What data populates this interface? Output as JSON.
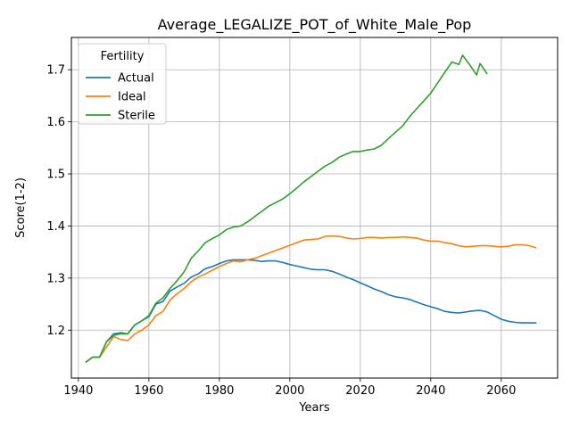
{
  "chart_data": {
    "type": "line",
    "title": "Average_LEGALIZE_POT_of_White_Male_Pop",
    "xlabel": "Years",
    "ylabel": "Score(1-2)",
    "xlim": [
      1938,
      2076
    ],
    "ylim": [
      1.108,
      1.762
    ],
    "xticks": [
      1940,
      1960,
      1980,
      2000,
      2020,
      2040,
      2060
    ],
    "yticks": [
      1.2,
      1.3,
      1.4,
      1.5,
      1.6,
      1.7
    ],
    "ytick_labels": [
      "1.2",
      "1.3",
      "1.4",
      "1.5",
      "1.6",
      "1.7"
    ],
    "grid": true,
    "legend": {
      "title": "Fertility",
      "position": "upper-left"
    },
    "series": [
      {
        "name": "Actual",
        "color": "#1f77b4",
        "x": [
          1942,
          1944,
          1946,
          1948,
          1950,
          1952,
          1954,
          1956,
          1958,
          1960,
          1962,
          1964,
          1966,
          1968,
          1970,
          1972,
          1974,
          1976,
          1978,
          1980,
          1982,
          1984,
          1986,
          1988,
          1990,
          1992,
          1994,
          1996,
          1998,
          2000,
          2002,
          2004,
          2006,
          2008,
          2010,
          2012,
          2014,
          2016,
          2018,
          2020,
          2022,
          2024,
          2026,
          2028,
          2030,
          2032,
          2034,
          2036,
          2038,
          2040,
          2042,
          2044,
          2046,
          2048,
          2050,
          2052,
          2054,
          2056,
          2058,
          2060,
          2062,
          2064,
          2066,
          2068,
          2070
        ],
        "y": [
          1.138,
          1.148,
          1.148,
          1.178,
          1.193,
          1.195,
          1.193,
          1.21,
          1.218,
          1.226,
          1.25,
          1.255,
          1.275,
          1.283,
          1.29,
          1.302,
          1.308,
          1.318,
          1.322,
          1.328,
          1.333,
          1.335,
          1.335,
          1.335,
          1.334,
          1.332,
          1.333,
          1.333,
          1.33,
          1.326,
          1.323,
          1.32,
          1.317,
          1.316,
          1.316,
          1.313,
          1.308,
          1.302,
          1.297,
          1.291,
          1.285,
          1.279,
          1.274,
          1.268,
          1.264,
          1.262,
          1.259,
          1.254,
          1.249,
          1.245,
          1.241,
          1.236,
          1.234,
          1.233,
          1.235,
          1.237,
          1.238,
          1.235,
          1.228,
          1.221,
          1.217,
          1.215,
          1.214,
          1.214,
          1.214
        ]
      },
      {
        "name": "Ideal",
        "color": "#ff7f0e",
        "x": [
          1942,
          1944,
          1946,
          1948,
          1950,
          1952,
          1954,
          1956,
          1958,
          1960,
          1962,
          1964,
          1966,
          1968,
          1970,
          1972,
          1974,
          1976,
          1978,
          1980,
          1982,
          1984,
          1986,
          1988,
          1990,
          1992,
          1994,
          1996,
          1998,
          2000,
          2002,
          2004,
          2006,
          2008,
          2010,
          2012,
          2014,
          2016,
          2018,
          2020,
          2022,
          2024,
          2026,
          2028,
          2030,
          2032,
          2034,
          2036,
          2038,
          2040,
          2042,
          2044,
          2046,
          2048,
          2050,
          2052,
          2054,
          2056,
          2058,
          2060,
          2062,
          2064,
          2066,
          2068,
          2070
        ],
        "y": [
          1.138,
          1.148,
          1.148,
          1.168,
          1.188,
          1.182,
          1.18,
          1.193,
          1.2,
          1.21,
          1.228,
          1.236,
          1.258,
          1.27,
          1.28,
          1.293,
          1.302,
          1.308,
          1.315,
          1.322,
          1.328,
          1.333,
          1.331,
          1.335,
          1.338,
          1.343,
          1.348,
          1.353,
          1.358,
          1.363,
          1.368,
          1.373,
          1.374,
          1.375,
          1.38,
          1.381,
          1.38,
          1.377,
          1.375,
          1.376,
          1.378,
          1.378,
          1.377,
          1.378,
          1.378,
          1.379,
          1.378,
          1.377,
          1.373,
          1.371,
          1.371,
          1.368,
          1.366,
          1.362,
          1.36,
          1.361,
          1.362,
          1.362,
          1.361,
          1.36,
          1.361,
          1.364,
          1.364,
          1.362,
          1.358
        ]
      },
      {
        "name": "Sterile",
        "color": "#2ca02c",
        "x": [
          1942,
          1944,
          1946,
          1948,
          1950,
          1952,
          1954,
          1956,
          1958,
          1960,
          1962,
          1964,
          1966,
          1968,
          1970,
          1972,
          1974,
          1976,
          1978,
          1980,
          1982,
          1984,
          1986,
          1988,
          1990,
          1992,
          1994,
          1996,
          1998,
          2000,
          2002,
          2004,
          2006,
          2008,
          2010,
          2012,
          2014,
          2016,
          2018,
          2020,
          2022,
          2024,
          2026,
          2028,
          2030,
          2032,
          2034,
          2036,
          2038,
          2040,
          2042,
          2044,
          2046,
          2048,
          2049,
          2051,
          2053,
          2054,
          2056
        ],
        "y": [
          1.138,
          1.148,
          1.148,
          1.178,
          1.19,
          1.193,
          1.193,
          1.21,
          1.218,
          1.228,
          1.252,
          1.262,
          1.28,
          1.295,
          1.312,
          1.338,
          1.352,
          1.368,
          1.376,
          1.383,
          1.393,
          1.398,
          1.4,
          1.408,
          1.418,
          1.428,
          1.438,
          1.445,
          1.452,
          1.462,
          1.473,
          1.485,
          1.495,
          1.505,
          1.515,
          1.522,
          1.532,
          1.538,
          1.543,
          1.543,
          1.546,
          1.548,
          1.555,
          1.568,
          1.58,
          1.592,
          1.61,
          1.625,
          1.64,
          1.655,
          1.675,
          1.695,
          1.715,
          1.71,
          1.728,
          1.71,
          1.69,
          1.712,
          1.692
        ]
      }
    ]
  }
}
